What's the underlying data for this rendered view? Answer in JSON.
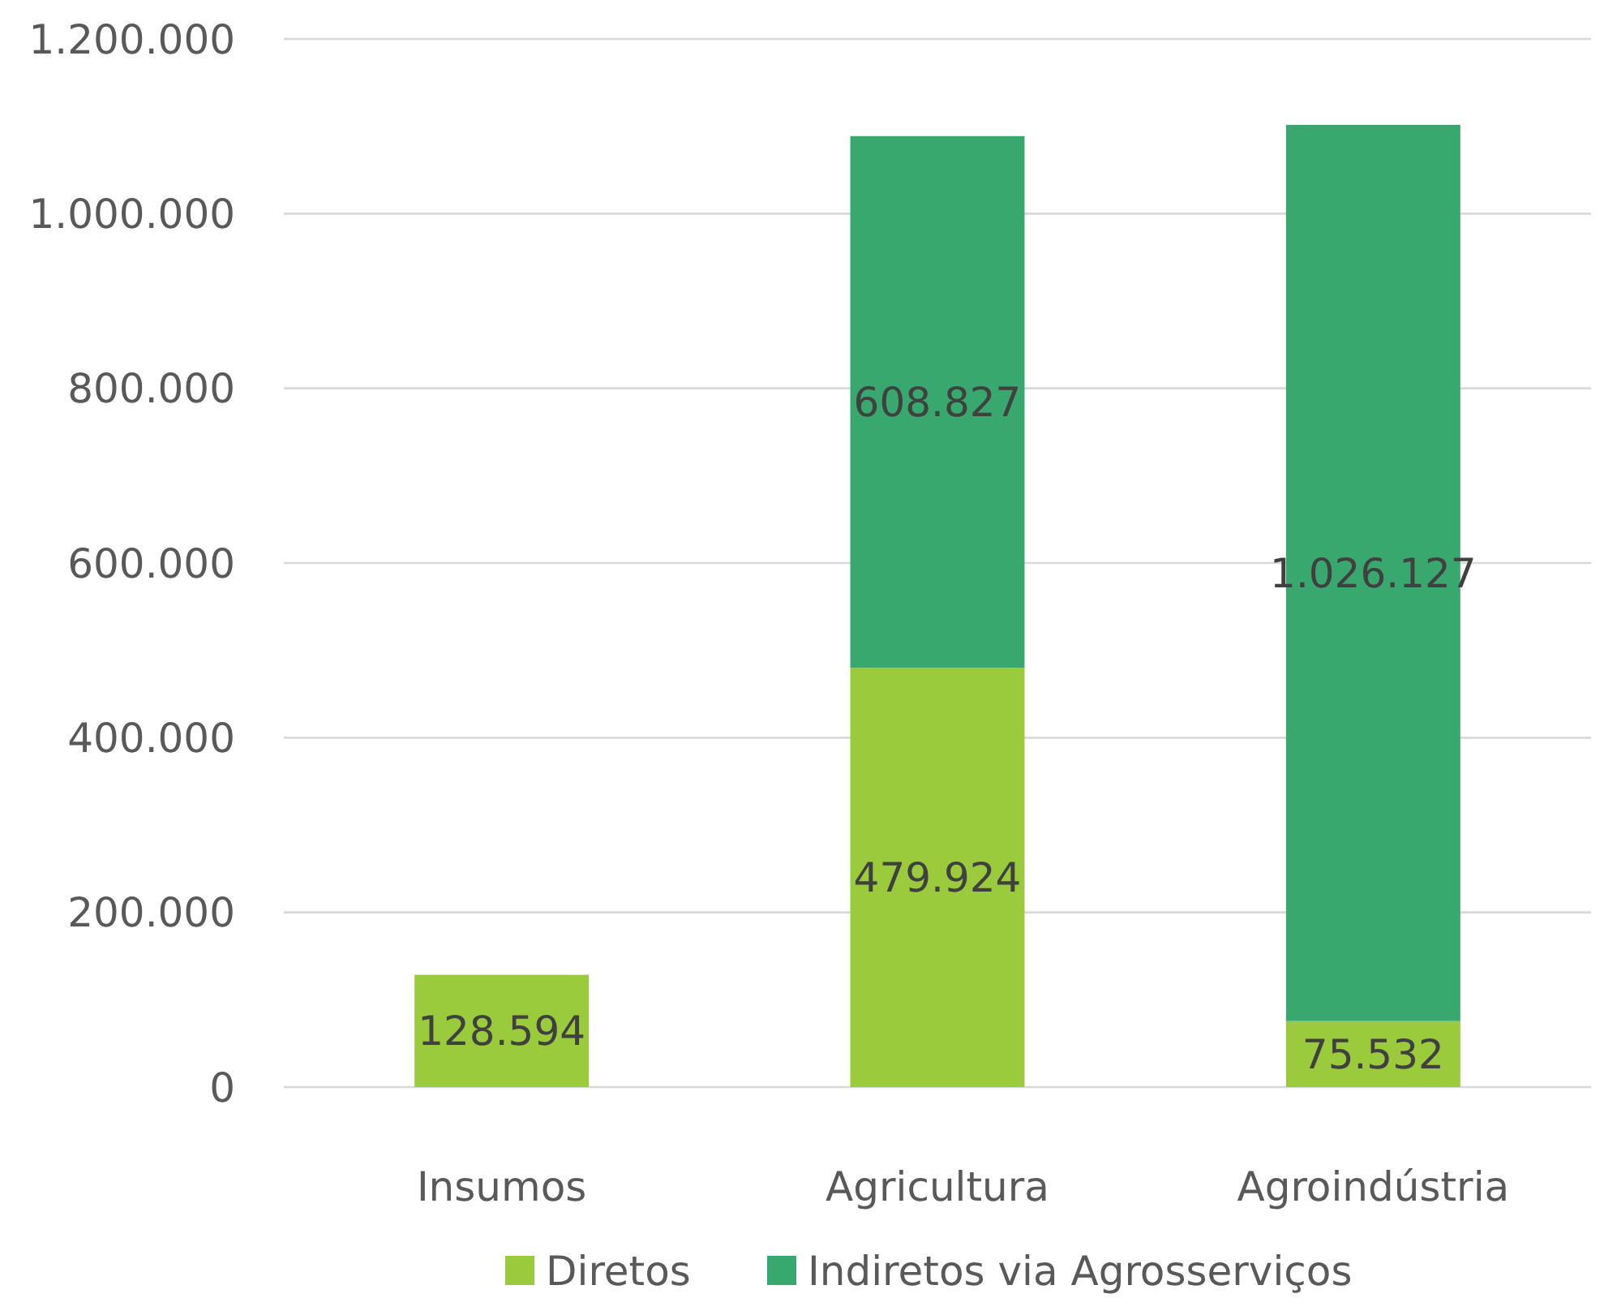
{
  "chart_data": {
    "type": "bar",
    "stacked": true,
    "categories": [
      "Insumos",
      "Agricultura",
      "Agroindústria"
    ],
    "series": [
      {
        "name": "Diretos",
        "color": "#9acb3c",
        "values": [
          128594,
          479924,
          75532
        ],
        "value_labels": [
          "128.594",
          "479.924",
          "75.532"
        ]
      },
      {
        "name": "Indiretos via Agrosserviços",
        "color": "#38a86e",
        "values": [
          null,
          608827,
          1026127
        ],
        "value_labels": [
          null,
          "608.827",
          "1.026.127"
        ]
      }
    ],
    "ylim": [
      0,
      1200000
    ],
    "yticks": [
      {
        "value": 0,
        "label": "0"
      },
      {
        "value": 200000,
        "label": "200.000"
      },
      {
        "value": 400000,
        "label": "400.000"
      },
      {
        "value": 600000,
        "label": "600.000"
      },
      {
        "value": 800000,
        "label": "800.000"
      },
      {
        "value": 1000000,
        "label": "1.000.000"
      },
      {
        "value": 1200000,
        "label": "1.200.000"
      }
    ],
    "grid": "y",
    "legend": "bottom"
  }
}
